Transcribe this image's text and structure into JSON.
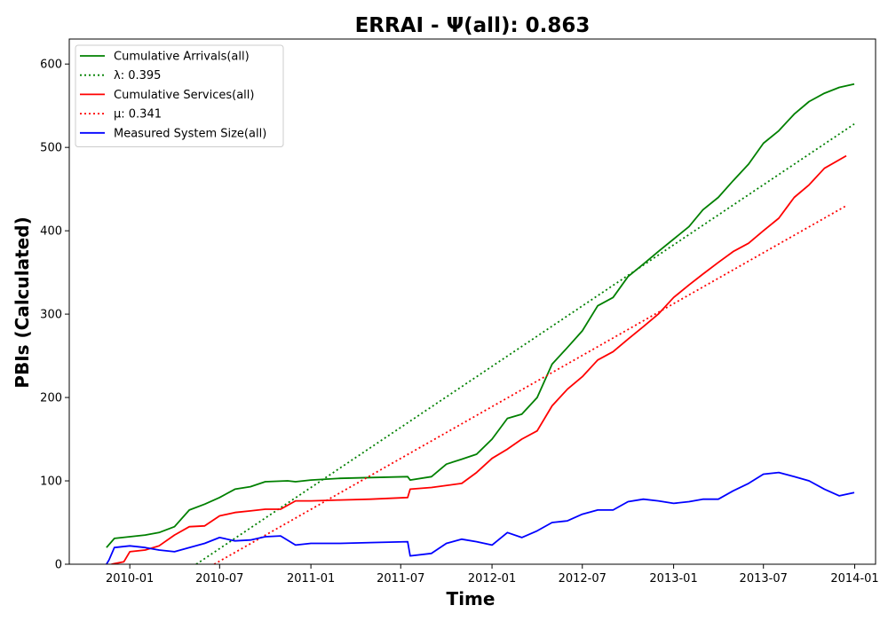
{
  "chart_data": {
    "type": "line",
    "title": "ERRAI -  Ψ(all): 0.863",
    "xlabel": "Time",
    "ylabel": "PBIs (Calculated)",
    "x_type": "date",
    "xlim": [
      "2009-09-01",
      "2014-02-12"
    ],
    "ylim": [
      0,
      630
    ],
    "x_ticks": [
      "2010-01",
      "2010-07",
      "2011-01",
      "2011-07",
      "2012-01",
      "2012-07",
      "2013-01",
      "2013-07",
      "2014-01"
    ],
    "y_ticks": [
      0,
      100,
      200,
      300,
      400,
      500,
      600
    ],
    "grid": false,
    "legend_position": "top-left",
    "series": [
      {
        "name": "Cumulative Arrivals(all)",
        "color": "#008000",
        "style": "solid",
        "points": [
          [
            "2009-11-15",
            20
          ],
          [
            "2009-12-01",
            31
          ],
          [
            "2010-01-01",
            33
          ],
          [
            "2010-02-01",
            35
          ],
          [
            "2010-03-01",
            38
          ],
          [
            "2010-04-01",
            45
          ],
          [
            "2010-05-01",
            65
          ],
          [
            "2010-06-01",
            72
          ],
          [
            "2010-07-01",
            80
          ],
          [
            "2010-08-01",
            90
          ],
          [
            "2010-09-01",
            93
          ],
          [
            "2010-10-01",
            99
          ],
          [
            "2010-11-15",
            100
          ],
          [
            "2010-12-01",
            99
          ],
          [
            "2011-01-01",
            101
          ],
          [
            "2011-03-01",
            103
          ],
          [
            "2011-05-01",
            104
          ],
          [
            "2011-07-15",
            105
          ],
          [
            "2011-07-20",
            101
          ],
          [
            "2011-09-01",
            105
          ],
          [
            "2011-10-01",
            120
          ],
          [
            "2011-11-01",
            126
          ],
          [
            "2011-12-01",
            132
          ],
          [
            "2012-01-01",
            150
          ],
          [
            "2012-02-01",
            175
          ],
          [
            "2012-03-01",
            180
          ],
          [
            "2012-04-01",
            200
          ],
          [
            "2012-05-01",
            240
          ],
          [
            "2012-06-01",
            260
          ],
          [
            "2012-07-01",
            280
          ],
          [
            "2012-08-01",
            310
          ],
          [
            "2012-09-01",
            320
          ],
          [
            "2012-10-01",
            345
          ],
          [
            "2012-11-01",
            360
          ],
          [
            "2012-12-01",
            375
          ],
          [
            "2013-01-01",
            390
          ],
          [
            "2013-02-01",
            405
          ],
          [
            "2013-03-01",
            425
          ],
          [
            "2013-04-01",
            440
          ],
          [
            "2013-05-01",
            460
          ],
          [
            "2013-06-01",
            480
          ],
          [
            "2013-07-01",
            505
          ],
          [
            "2013-08-01",
            520
          ],
          [
            "2013-09-01",
            540
          ],
          [
            "2013-10-01",
            555
          ],
          [
            "2013-11-01",
            565
          ],
          [
            "2013-12-01",
            572
          ],
          [
            "2013-12-31",
            576
          ]
        ]
      },
      {
        "name": "λ: 0.395",
        "color": "#008000",
        "style": "dotted",
        "points": [
          [
            "2010-05-15",
            0
          ],
          [
            "2013-12-31",
            528
          ]
        ]
      },
      {
        "name": "Cumulative Services(all)",
        "color": "#ff0000",
        "style": "solid",
        "points": [
          [
            "2009-11-25",
            0
          ],
          [
            "2009-12-20",
            3
          ],
          [
            "2010-01-01",
            15
          ],
          [
            "2010-02-01",
            17
          ],
          [
            "2010-03-01",
            22
          ],
          [
            "2010-04-01",
            35
          ],
          [
            "2010-05-01",
            45
          ],
          [
            "2010-06-01",
            46
          ],
          [
            "2010-07-01",
            58
          ],
          [
            "2010-08-01",
            62
          ],
          [
            "2010-09-01",
            64
          ],
          [
            "2010-10-01",
            66
          ],
          [
            "2010-11-01",
            66
          ],
          [
            "2010-12-01",
            76
          ],
          [
            "2011-01-01",
            76
          ],
          [
            "2011-03-01",
            77
          ],
          [
            "2011-05-01",
            78
          ],
          [
            "2011-07-15",
            80
          ],
          [
            "2011-07-20",
            90
          ],
          [
            "2011-09-01",
            92
          ],
          [
            "2011-11-01",
            97
          ],
          [
            "2011-12-01",
            110
          ],
          [
            "2012-01-01",
            127
          ],
          [
            "2012-02-01",
            138
          ],
          [
            "2012-03-01",
            150
          ],
          [
            "2012-04-01",
            160
          ],
          [
            "2012-05-01",
            190
          ],
          [
            "2012-06-01",
            210
          ],
          [
            "2012-07-01",
            225
          ],
          [
            "2012-08-01",
            245
          ],
          [
            "2012-09-01",
            255
          ],
          [
            "2012-10-01",
            270
          ],
          [
            "2012-11-01",
            285
          ],
          [
            "2012-12-01",
            300
          ],
          [
            "2013-01-01",
            320
          ],
          [
            "2013-02-01",
            335
          ],
          [
            "2013-03-01",
            348
          ],
          [
            "2013-04-01",
            362
          ],
          [
            "2013-05-01",
            375
          ],
          [
            "2013-06-01",
            385
          ],
          [
            "2013-07-01",
            400
          ],
          [
            "2013-08-01",
            415
          ],
          [
            "2013-09-01",
            440
          ],
          [
            "2013-10-01",
            455
          ],
          [
            "2013-11-01",
            475
          ],
          [
            "2013-12-15",
            490
          ]
        ]
      },
      {
        "name": "μ: 0.341",
        "color": "#ff0000",
        "style": "dotted",
        "points": [
          [
            "2010-06-20",
            0
          ],
          [
            "2013-12-15",
            430
          ]
        ]
      },
      {
        "name": "Measured System Size(all)",
        "color": "#0000ff",
        "style": "solid",
        "points": [
          [
            "2009-11-15",
            0
          ],
          [
            "2009-11-20",
            5
          ],
          [
            "2009-12-01",
            20
          ],
          [
            "2010-01-01",
            22
          ],
          [
            "2010-02-01",
            20
          ],
          [
            "2010-03-01",
            17
          ],
          [
            "2010-04-01",
            15
          ],
          [
            "2010-05-01",
            20
          ],
          [
            "2010-06-01",
            25
          ],
          [
            "2010-07-01",
            32
          ],
          [
            "2010-08-01",
            28
          ],
          [
            "2010-09-01",
            29
          ],
          [
            "2010-10-01",
            33
          ],
          [
            "2010-11-01",
            34
          ],
          [
            "2010-12-01",
            23
          ],
          [
            "2011-01-01",
            25
          ],
          [
            "2011-03-01",
            25
          ],
          [
            "2011-05-01",
            26
          ],
          [
            "2011-07-15",
            27
          ],
          [
            "2011-07-20",
            10
          ],
          [
            "2011-09-01",
            13
          ],
          [
            "2011-10-01",
            25
          ],
          [
            "2011-11-01",
            30
          ],
          [
            "2011-12-01",
            27
          ],
          [
            "2012-01-01",
            23
          ],
          [
            "2012-02-01",
            38
          ],
          [
            "2012-03-01",
            32
          ],
          [
            "2012-04-01",
            40
          ],
          [
            "2012-05-01",
            50
          ],
          [
            "2012-06-01",
            52
          ],
          [
            "2012-07-01",
            60
          ],
          [
            "2012-08-01",
            65
          ],
          [
            "2012-09-01",
            65
          ],
          [
            "2012-10-01",
            75
          ],
          [
            "2012-11-01",
            78
          ],
          [
            "2012-12-01",
            76
          ],
          [
            "2013-01-01",
            73
          ],
          [
            "2013-02-01",
            75
          ],
          [
            "2013-03-01",
            78
          ],
          [
            "2013-04-01",
            78
          ],
          [
            "2013-05-01",
            88
          ],
          [
            "2013-06-01",
            97
          ],
          [
            "2013-07-01",
            108
          ],
          [
            "2013-08-01",
            110
          ],
          [
            "2013-09-01",
            105
          ],
          [
            "2013-10-01",
            100
          ],
          [
            "2013-11-01",
            90
          ],
          [
            "2013-12-01",
            82
          ],
          [
            "2013-12-31",
            86
          ]
        ]
      }
    ]
  }
}
